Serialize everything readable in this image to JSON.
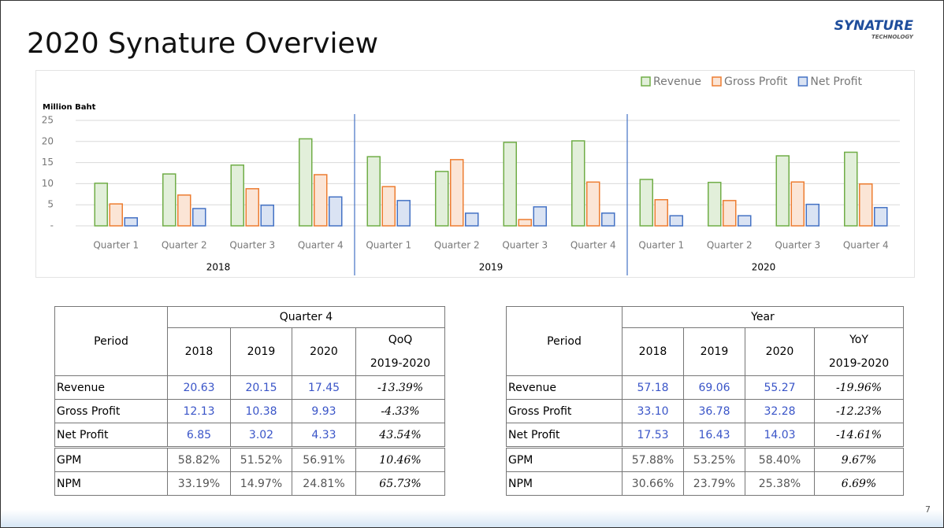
{
  "title": "2020 Synature Overview",
  "logo": {
    "name": "SYNATURE",
    "tagline": "TECHNOLOGY"
  },
  "page_number": "7",
  "chart_data": {
    "type": "bar",
    "y_label": "Million Baht",
    "categories": [
      "Quarter 1",
      "Quarter 2",
      "Quarter 3",
      "Quarter 4",
      "Quarter 1",
      "Quarter 2",
      "Quarter 3",
      "Quarter 4",
      "Quarter 1",
      "Quarter 2",
      "Quarter 3",
      "Quarter 4"
    ],
    "groups": [
      "2018",
      "2019",
      "2020"
    ],
    "series": [
      {
        "name": "Revenue",
        "color": "#70ad47",
        "fill": "#e2efda",
        "values": [
          10.1,
          12.3,
          14.4,
          20.63,
          16.4,
          12.9,
          19.8,
          20.15,
          11.0,
          10.3,
          16.6,
          17.45
        ]
      },
      {
        "name": "Gross Profit",
        "color": "#ed7d31",
        "fill": "#fbe5d6",
        "values": [
          5.2,
          7.3,
          8.8,
          12.13,
          9.3,
          15.7,
          1.5,
          10.38,
          6.2,
          6.0,
          10.4,
          9.93
        ]
      },
      {
        "name": "Net Profit",
        "color": "#4472c4",
        "fill": "#dae3f3",
        "values": [
          1.9,
          4.1,
          4.9,
          6.85,
          6.0,
          3.0,
          4.5,
          3.02,
          2.4,
          2.4,
          5.1,
          4.33
        ]
      }
    ],
    "ylim": [
      0,
      25
    ],
    "yticks": [
      {
        "value": 0,
        "label": "-"
      },
      5,
      10,
      15,
      20,
      25
    ],
    "grid": true,
    "legend": "top-right"
  },
  "tables": [
    {
      "period_header": "Period",
      "group_header": "Quarter 4",
      "columns": [
        "2018",
        "2019",
        "2020"
      ],
      "change_header": [
        "QoQ",
        "2019-2020"
      ],
      "rows": [
        {
          "label": "Revenue",
          "values": [
            "20.63",
            "20.15",
            "17.45"
          ],
          "change": "-13.39%"
        },
        {
          "label": "Gross Profit",
          "values": [
            "12.13",
            "10.38",
            "9.93"
          ],
          "change": "-4.33%"
        },
        {
          "label": "Net Profit",
          "values": [
            "6.85",
            "3.02",
            "4.33"
          ],
          "change": "43.54%"
        }
      ],
      "ratio_rows": [
        {
          "label": "GPM",
          "values": [
            "58.82%",
            "51.52%",
            "56.91%"
          ],
          "change": "10.46%"
        },
        {
          "label": "NPM",
          "values": [
            "33.19%",
            "14.97%",
            "24.81%"
          ],
          "change": "65.73%"
        }
      ]
    },
    {
      "period_header": "Period",
      "group_header": "Year",
      "columns": [
        "2018",
        "2019",
        "2020"
      ],
      "change_header": [
        "YoY",
        "2019-2020"
      ],
      "rows": [
        {
          "label": "Revenue",
          "values": [
            "57.18",
            "69.06",
            "55.27"
          ],
          "change": "-19.96%"
        },
        {
          "label": "Gross Profit",
          "values": [
            "33.10",
            "36.78",
            "32.28"
          ],
          "change": "-12.23%"
        },
        {
          "label": "Net Profit",
          "values": [
            "17.53",
            "16.43",
            "14.03"
          ],
          "change": "-14.61%"
        }
      ],
      "ratio_rows": [
        {
          "label": "GPM",
          "values": [
            "57.88%",
            "53.25%",
            "58.40%"
          ],
          "change": "9.67%"
        },
        {
          "label": "NPM",
          "values": [
            "30.66%",
            "23.79%",
            "25.38%"
          ],
          "change": "6.69%"
        }
      ]
    }
  ]
}
